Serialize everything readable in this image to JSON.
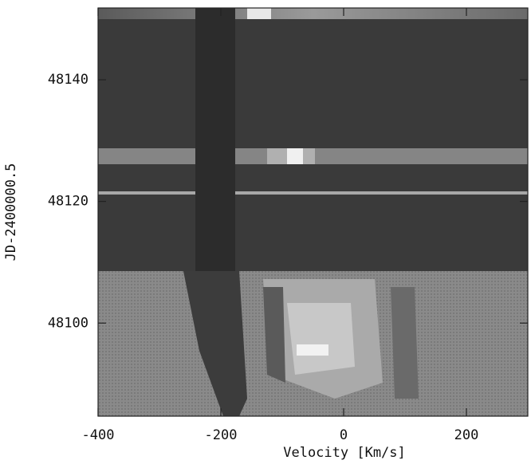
{
  "chart_data": {
    "type": "image",
    "x_label": "Velocity [Km/s]",
    "y_label": "JD-2400000.5",
    "xlim": [
      -400,
      300
    ],
    "xticks": [
      -400,
      -200,
      0,
      200
    ],
    "ylim": [
      48084.7,
      48151.8
    ],
    "yticks": [
      48100,
      48120,
      48140
    ]
  }
}
